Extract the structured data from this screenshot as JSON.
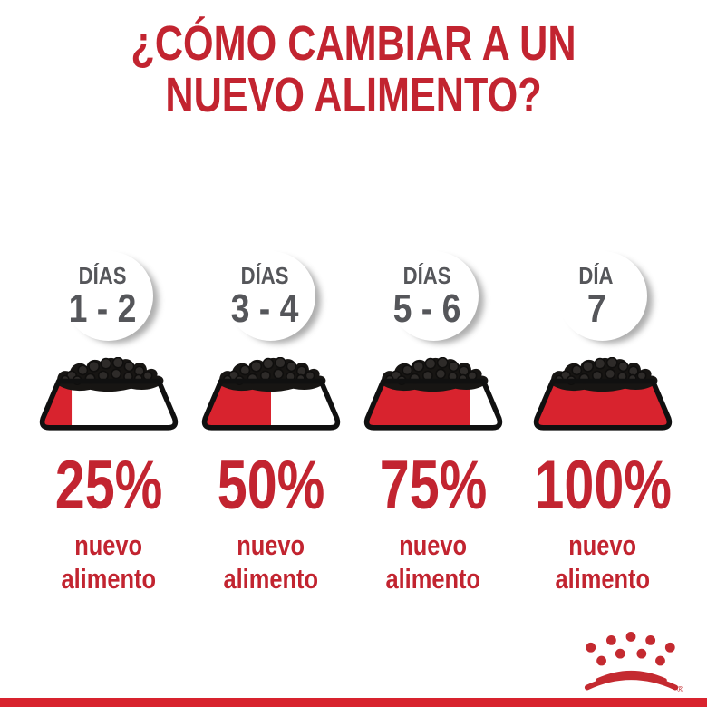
{
  "title": {
    "line1": "¿CÓMO CAMBIAR A UN",
    "line2": "NUEVO ALIMENTO?"
  },
  "columns": [
    {
      "day_label": "DÍAS",
      "day_range": "1 - 2",
      "percent": 25,
      "percent_label": "25%",
      "desc_line1": "nuevo",
      "desc_line2": "alimento"
    },
    {
      "day_label": "DÍAS",
      "day_range": "3 - 4",
      "percent": 50,
      "percent_label": "50%",
      "desc_line1": "nuevo",
      "desc_line2": "alimento"
    },
    {
      "day_label": "DÍAS",
      "day_range": "5 - 6",
      "percent": 75,
      "percent_label": "75%",
      "desc_line1": "nuevo",
      "desc_line2": "alimento"
    },
    {
      "day_label": "DÍA",
      "day_range": "7",
      "percent": 100,
      "percent_label": "100%",
      "desc_line1": "nuevo",
      "desc_line2": "alimento"
    }
  ],
  "logo": {
    "name": "royal-canin-crown",
    "registered_mark": "®"
  },
  "colors": {
    "text_red": "#C22430",
    "bowl_fill_red": "#D8232E",
    "crown_red": "#C42A30",
    "day_gray": "#55565A",
    "kibble_black": "#171513",
    "outline_black": "#101010",
    "bottom_bar_red": "#D8232E",
    "background": "#FFFFFF"
  }
}
